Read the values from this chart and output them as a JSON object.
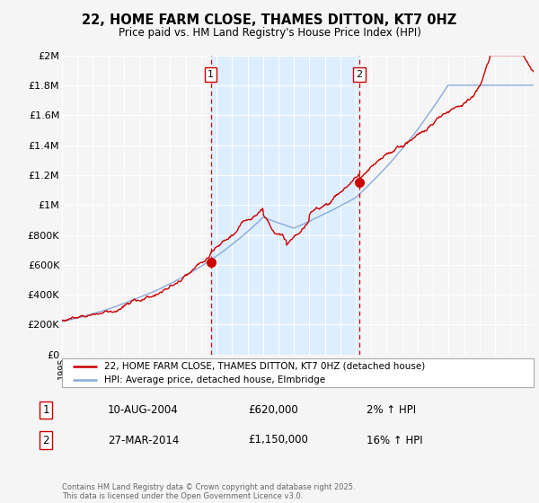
{
  "title": "22, HOME FARM CLOSE, THAMES DITTON, KT7 0HZ",
  "subtitle": "Price paid vs. HM Land Registry's House Price Index (HPI)",
  "ylabel_ticks": [
    0,
    200000,
    400000,
    600000,
    800000,
    1000000,
    1200000,
    1400000,
    1600000,
    1800000,
    2000000
  ],
  "ylabel_labels": [
    "£0",
    "£200K",
    "£400K",
    "£600K",
    "£800K",
    "£1M",
    "£1.2M",
    "£1.4M",
    "£1.6M",
    "£1.8M",
    "£2M"
  ],
  "red_line_color": "#cc0000",
  "blue_line_color": "#88aadd",
  "vline_color": "#cc0000",
  "shade_color": "#ddeeff",
  "marker1_year": 2004.62,
  "marker2_year": 2014.23,
  "marker1_price": 620000,
  "marker2_price": 1150000,
  "legend_line1": "22, HOME FARM CLOSE, THAMES DITTON, KT7 0HZ (detached house)",
  "legend_line2": "HPI: Average price, detached house, Elmbridge",
  "table_row1_num": "1",
  "table_row1_date": "10-AUG-2004",
  "table_row1_price": "£620,000",
  "table_row1_hpi": "2% ↑ HPI",
  "table_row2_num": "2",
  "table_row2_date": "27-MAR-2014",
  "table_row2_price": "£1,150,000",
  "table_row2_hpi": "16% ↑ HPI",
  "footer": "Contains HM Land Registry data © Crown copyright and database right 2025.\nThis data is licensed under the Open Government Licence v3.0.",
  "xmin": 1995,
  "xmax": 2025.5,
  "ymin": 0,
  "ymax": 2000000,
  "plot_bg_color": "#f5f5f5",
  "fig_bg_color": "#f5f5f5"
}
